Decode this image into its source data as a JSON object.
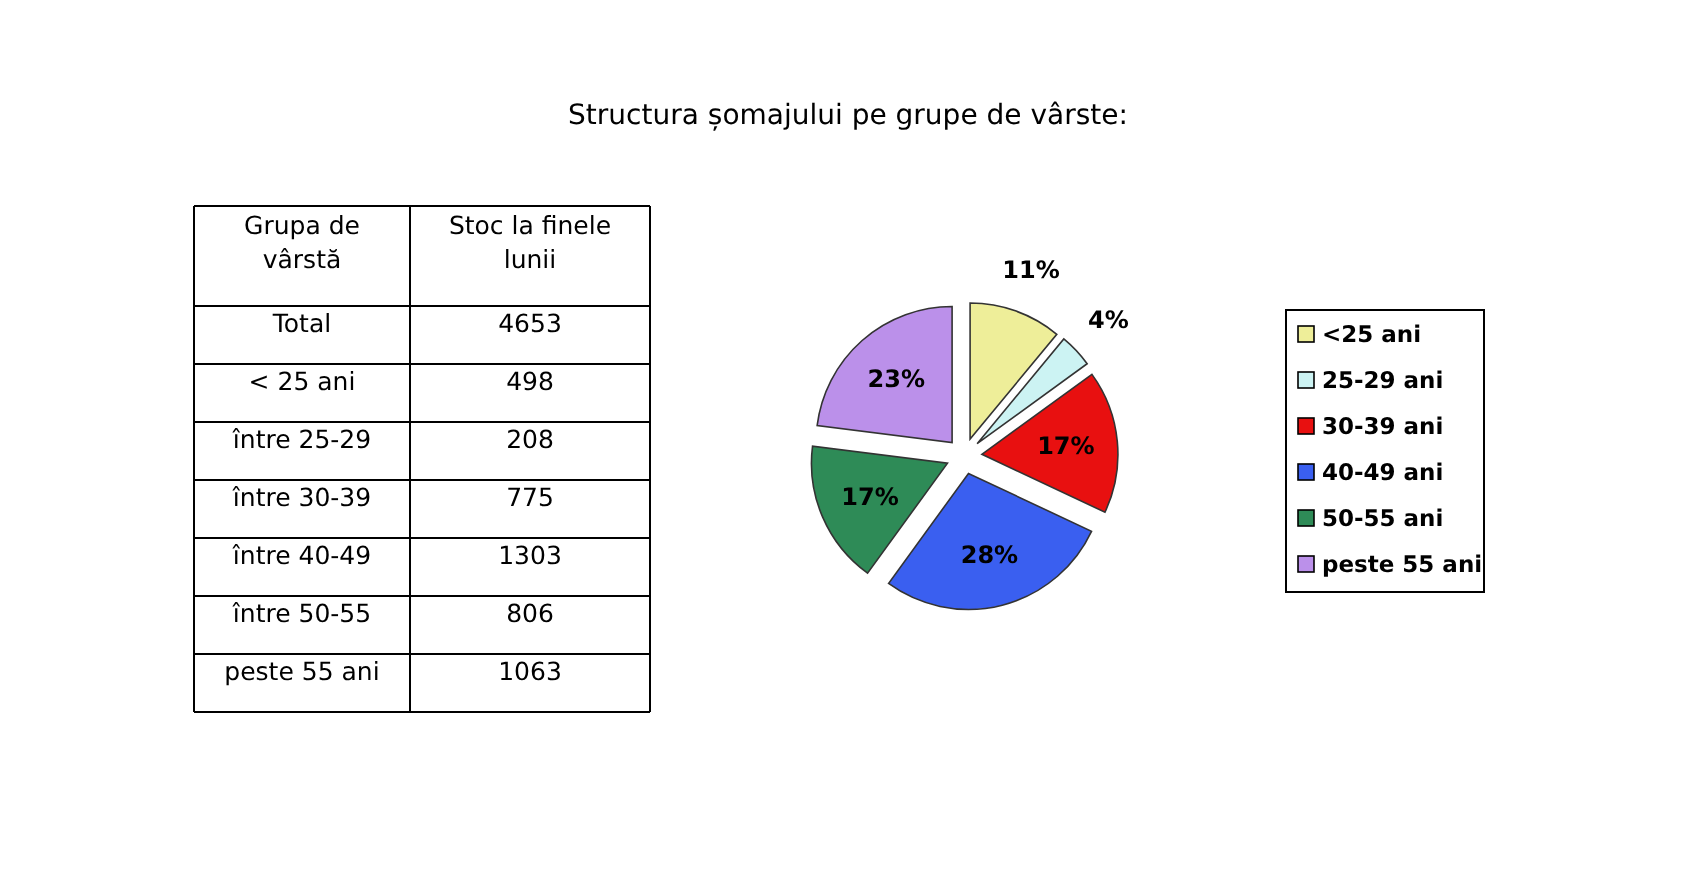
{
  "chart_data": [
    {
      "type": "other",
      "annotations": [
        "Grupa de vârstă",
        "Stoc la finele lunii",
        "Total",
        "4653",
        "< 25 ani",
        "498",
        "între 25-29",
        "208",
        "între 30-39",
        "775",
        "între 40-49",
        "1303",
        "între 50-55",
        "806",
        "peste 55 ani",
        "1063"
      ]
    },
    {
      "type": "pie",
      "title": "Structura șomajului pe grupe de vârste:",
      "categories": [
        "<25 ani",
        "25-29 ani",
        "30-39 ani",
        "40-49 ani",
        "50-55 ani",
        "peste 55 ani"
      ],
      "values": [
        11,
        4,
        17,
        28,
        17,
        23
      ],
      "colors": [
        "#eeee99",
        "#ccf3f3",
        "#e81010",
        "#3a5ff0",
        "#2e8b57",
        "#bb90ea"
      ],
      "value_labels": [
        "11%",
        "4%",
        "17%",
        "28%",
        "17%",
        "23%"
      ],
      "legend": "right"
    }
  ]
}
